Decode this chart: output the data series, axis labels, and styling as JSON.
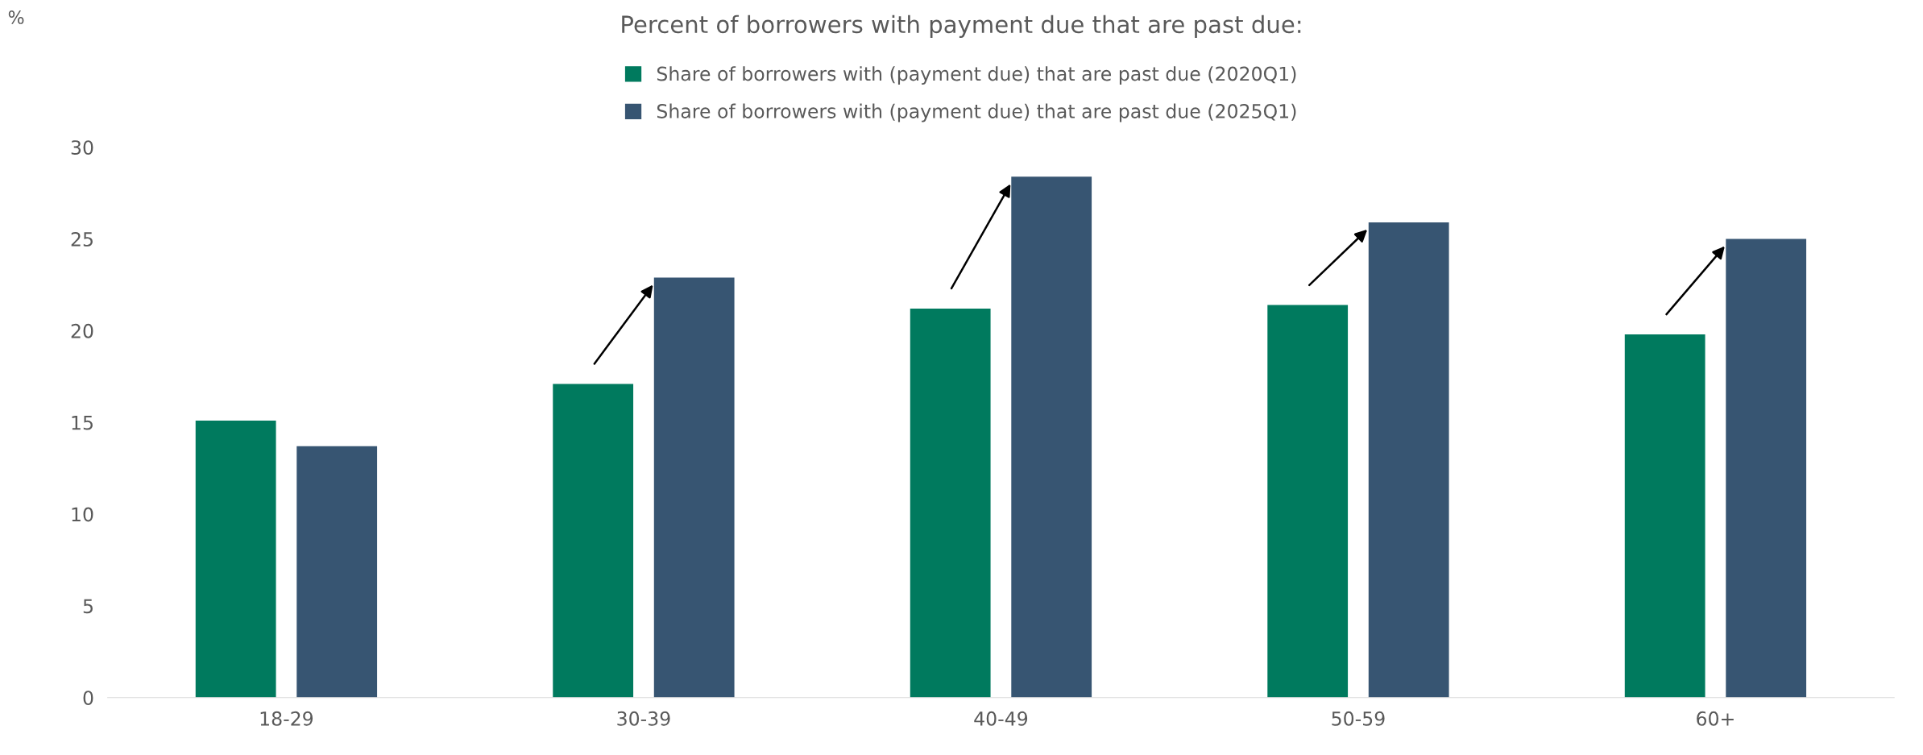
{
  "chart_data": {
    "type": "bar",
    "title": "Percent of borrowers with payment due that are past due:",
    "annotations": [
      "%"
    ],
    "categories": [
      "18-29",
      "30-39",
      "40-49",
      "50-59",
      "60+"
    ],
    "series": [
      {
        "name": "Share of borrowers with (payment due) that are past due (2020Q1)",
        "color": "#007a5e",
        "values": [
          15.1,
          17.1,
          21.2,
          21.4,
          19.8
        ]
      },
      {
        "name": "Share of borrowers with (payment due) that are past due (2025Q1)",
        "color": "#375572",
        "values": [
          13.7,
          22.9,
          28.4,
          25.9,
          25.0
        ]
      }
    ],
    "ylim": [
      0,
      30
    ],
    "yticks": [
      0,
      5,
      10,
      15,
      20,
      25,
      30
    ],
    "grid": false,
    "legend": "top"
  }
}
